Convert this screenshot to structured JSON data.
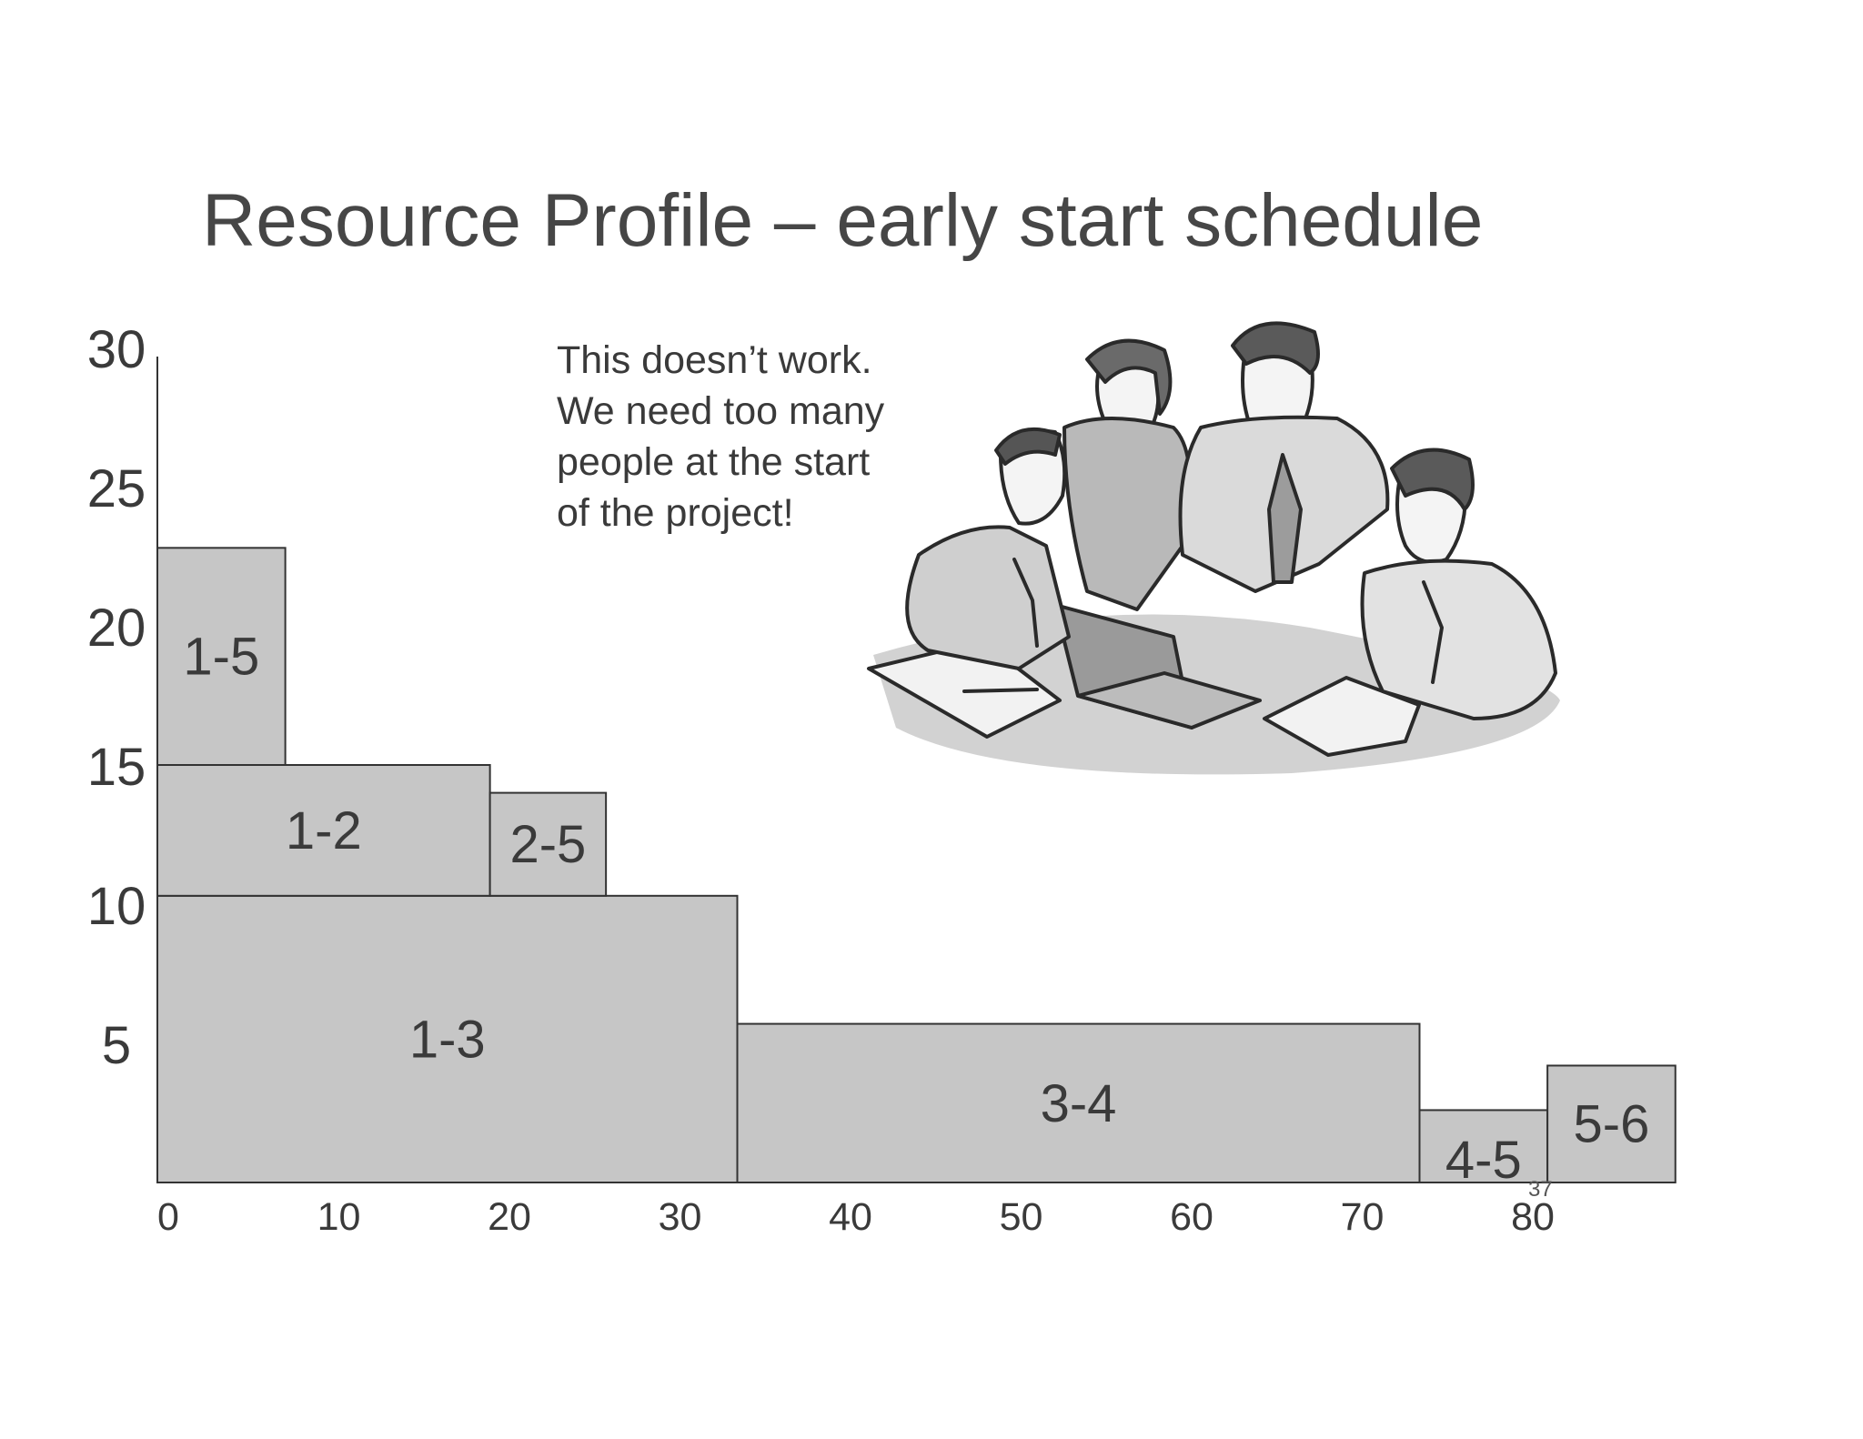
{
  "title": "Resource Profile – early start schedule",
  "callout": {
    "lines": [
      "This doesn’t work.",
      "We need too many",
      "people at the start",
      "of the project!"
    ]
  },
  "page_number": "37",
  "illustration": {
    "icon": "team-meeting-laptop-icon"
  },
  "chart_data": {
    "type": "bar",
    "layout": "stacked-resource-blocks",
    "title": "Resource Profile – early start schedule",
    "xlabel": "",
    "ylabel": "",
    "xlim": [
      0,
      89
    ],
    "ylim": [
      0,
      30
    ],
    "x_ticks": [
      0,
      10,
      20,
      30,
      40,
      50,
      60,
      70,
      80
    ],
    "y_ticks": [
      5,
      10,
      15,
      20,
      25,
      30
    ],
    "grid": false,
    "fill_color": "#c6c6c6",
    "edge_color": "#333333",
    "blocks": [
      {
        "label": "1-3",
        "x0": 0,
        "x1": 34,
        "y0": 0,
        "y1": 10.3
      },
      {
        "label": "1-2",
        "x0": 0,
        "x1": 19.5,
        "y0": 10.3,
        "y1": 15
      },
      {
        "label": "2-5",
        "x0": 19.5,
        "x1": 26.3,
        "y0": 10.3,
        "y1": 14
      },
      {
        "label": "1-5",
        "x0": 0,
        "x1": 7.5,
        "y0": 15,
        "y1": 22.8
      },
      {
        "label": "3-4",
        "x0": 34,
        "x1": 74,
        "y0": 0,
        "y1": 5.7
      },
      {
        "label": "4-5",
        "x0": 74,
        "x1": 81.5,
        "y0": 0,
        "y1": 2.6
      },
      {
        "label": "5-6",
        "x0": 81.5,
        "x1": 89,
        "y0": 0,
        "y1": 4.2
      }
    ]
  }
}
